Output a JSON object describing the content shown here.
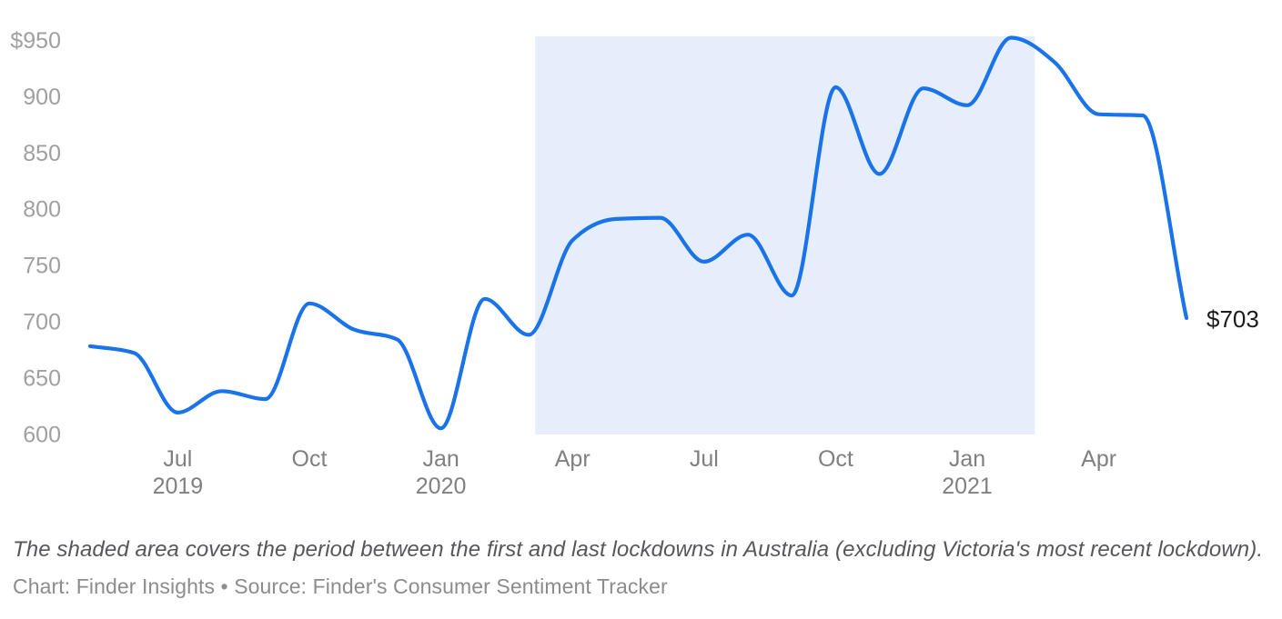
{
  "chart_data": {
    "type": "line",
    "title": "",
    "xlabel": "",
    "ylabel": "",
    "unit_prefix": "$",
    "x": [
      "May 2019",
      "Jun 2019",
      "Jul 2019",
      "Aug 2019",
      "Sep 2019",
      "Oct 2019",
      "Nov 2019",
      "Dec 2019",
      "Jan 2020",
      "Feb 2020",
      "Mar 2020",
      "Apr 2020",
      "May 2020",
      "Jun 2020",
      "Jul 2020",
      "Aug 2020",
      "Sep 2020",
      "Oct 2020",
      "Nov 2020",
      "Dec 2020",
      "Jan 2021",
      "Feb 2021",
      "Mar 2021",
      "Apr 2021",
      "May 2021",
      "Jun 2021"
    ],
    "values": [
      678,
      672,
      619,
      638,
      631,
      716,
      693,
      684,
      605,
      720,
      688,
      772,
      791,
      792,
      753,
      777,
      723,
      908,
      831,
      907,
      892,
      952,
      930,
      884,
      883,
      703
    ],
    "ylim": [
      600,
      950
    ],
    "grid": false,
    "legend": null,
    "y_ticks": [
      {
        "label": "$950",
        "value": 950
      },
      {
        "label": "900",
        "value": 900
      },
      {
        "label": "850",
        "value": 850
      },
      {
        "label": "800",
        "value": 800
      },
      {
        "label": "750",
        "value": 750
      },
      {
        "label": "700",
        "value": 700
      },
      {
        "label": "650",
        "value": 650
      },
      {
        "label": "600",
        "value": 600
      }
    ],
    "x_ticks": [
      {
        "label": "Jul",
        "year": "2019",
        "month_index": 2
      },
      {
        "label": "Oct",
        "year": "",
        "month_index": 5
      },
      {
        "label": "Jan",
        "year": "2020",
        "month_index": 8
      },
      {
        "label": "Apr",
        "year": "",
        "month_index": 11
      },
      {
        "label": "Jul",
        "year": "",
        "month_index": 14
      },
      {
        "label": "Oct",
        "year": "",
        "month_index": 17
      },
      {
        "label": "Jan",
        "year": "2021",
        "month_index": 20
      },
      {
        "label": "Apr",
        "year": "",
        "month_index": 23
      }
    ],
    "end_label": "$703",
    "shaded_region": {
      "from_month_index": 10.15,
      "to_month_index": 21.54,
      "meaning": "period between the first and last lockdowns in Australia"
    },
    "colors": {
      "line": "#1a73e8",
      "shade": "#e5eefa",
      "y_tick_text": "#a0a0a0",
      "x_tick_text": "#808080",
      "end_label_text": "#1b1b1b"
    }
  },
  "footer": {
    "note": "The shaded area covers the period between the first and last lockdowns in Australia (excluding Victoria's most recent lockdown).",
    "credit": "Chart: Finder Insights • Source: Finder's Consumer Sentiment Tracker"
  }
}
